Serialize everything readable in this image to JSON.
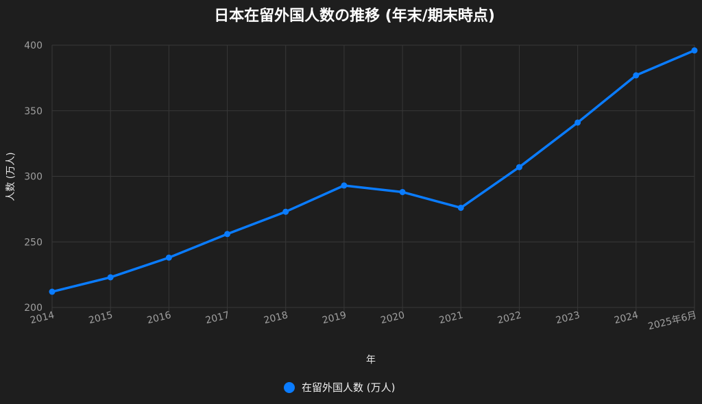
{
  "chart_data": {
    "type": "line",
    "title": "日本在留外国人数の推移 (年末/期末時点)",
    "xlabel": "年",
    "ylabel": "人数 (万人)",
    "categories": [
      "2014",
      "2015",
      "2016",
      "2017",
      "2018",
      "2019",
      "2020",
      "2021",
      "2022",
      "2023",
      "2024",
      "2025年6月"
    ],
    "series": [
      {
        "name": "在留外国人数 (万人)",
        "color": "#0a7cff",
        "values": [
          212,
          223,
          238,
          256,
          273,
          293,
          288,
          276,
          307,
          341,
          377,
          396
        ]
      }
    ],
    "ylim": [
      200,
      400
    ],
    "yticks": [
      200,
      250,
      300,
      350,
      400
    ],
    "grid": true,
    "legend_position": "bottom-center"
  }
}
